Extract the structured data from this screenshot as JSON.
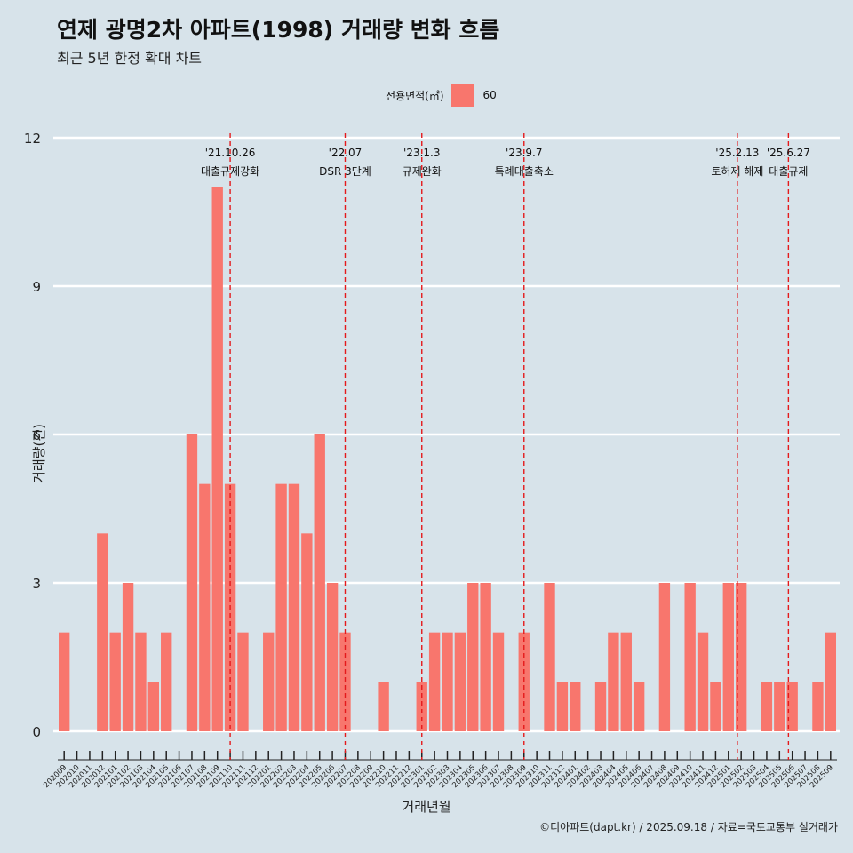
{
  "chart_data": {
    "type": "bar",
    "title": "연제 광명2차 아파트(1998) 거래량 변화 흐름",
    "subtitle": "최근 5년 한정 확대 차트",
    "xlabel": "거래년월",
    "ylabel": "거래량(건)",
    "ylim": [
      0,
      12
    ],
    "yticks": [
      0,
      3,
      6,
      9,
      12
    ],
    "grid": "horizontal",
    "legend": {
      "title": "전용면적(㎡)",
      "position": "top",
      "entries": [
        "60"
      ]
    },
    "bar_color": "#f8766d",
    "event_line_color": "#e41a1c",
    "categories": [
      "202009",
      "202010",
      "202011",
      "202012",
      "202101",
      "202102",
      "202103",
      "202104",
      "202105",
      "202106",
      "202107",
      "202108",
      "202109",
      "202110",
      "202111",
      "202112",
      "202201",
      "202202",
      "202203",
      "202204",
      "202205",
      "202206",
      "202207",
      "202208",
      "202209",
      "202210",
      "202211",
      "202212",
      "202301",
      "202302",
      "202303",
      "202304",
      "202305",
      "202306",
      "202307",
      "202308",
      "202309",
      "202310",
      "202311",
      "202312",
      "202401",
      "202402",
      "202403",
      "202404",
      "202405",
      "202406",
      "202407",
      "202408",
      "202409",
      "202410",
      "202411",
      "202412",
      "202501",
      "202502",
      "202503",
      "202504",
      "202505",
      "202506",
      "202507",
      "202508",
      "202509"
    ],
    "values": [
      2,
      0,
      0,
      4,
      2,
      3,
      2,
      1,
      2,
      0,
      6,
      5,
      11,
      5,
      2,
      0,
      2,
      5,
      5,
      4,
      6,
      3,
      2,
      0,
      0,
      1,
      0,
      0,
      1,
      2,
      2,
      2,
      3,
      3,
      2,
      0,
      2,
      0,
      3,
      1,
      1,
      0,
      1,
      2,
      2,
      1,
      0,
      3,
      0,
      3,
      2,
      1,
      3,
      3,
      0,
      1,
      1,
      1,
      0,
      1,
      2
    ],
    "events": [
      {
        "x": 13.5,
        "date": "'21.10.26",
        "label": "대출규제강화"
      },
      {
        "x": 22.5,
        "date": "'22.07",
        "label": "DSR 3단계"
      },
      {
        "x": 28.5,
        "date": "'23.1.3",
        "label": "규제완화"
      },
      {
        "x": 36.5,
        "date": "'23.9.7",
        "label": "특례대출축소"
      },
      {
        "x": 53.2,
        "date": "'25.2.13",
        "label": "토허제 해제"
      },
      {
        "x": 57.2,
        "date": "'25.6.27",
        "label": "대출규제"
      }
    ]
  },
  "caption": "©디아파트(dapt.kr) / 2025.09.18 / 자료=국토교통부 실거래가"
}
